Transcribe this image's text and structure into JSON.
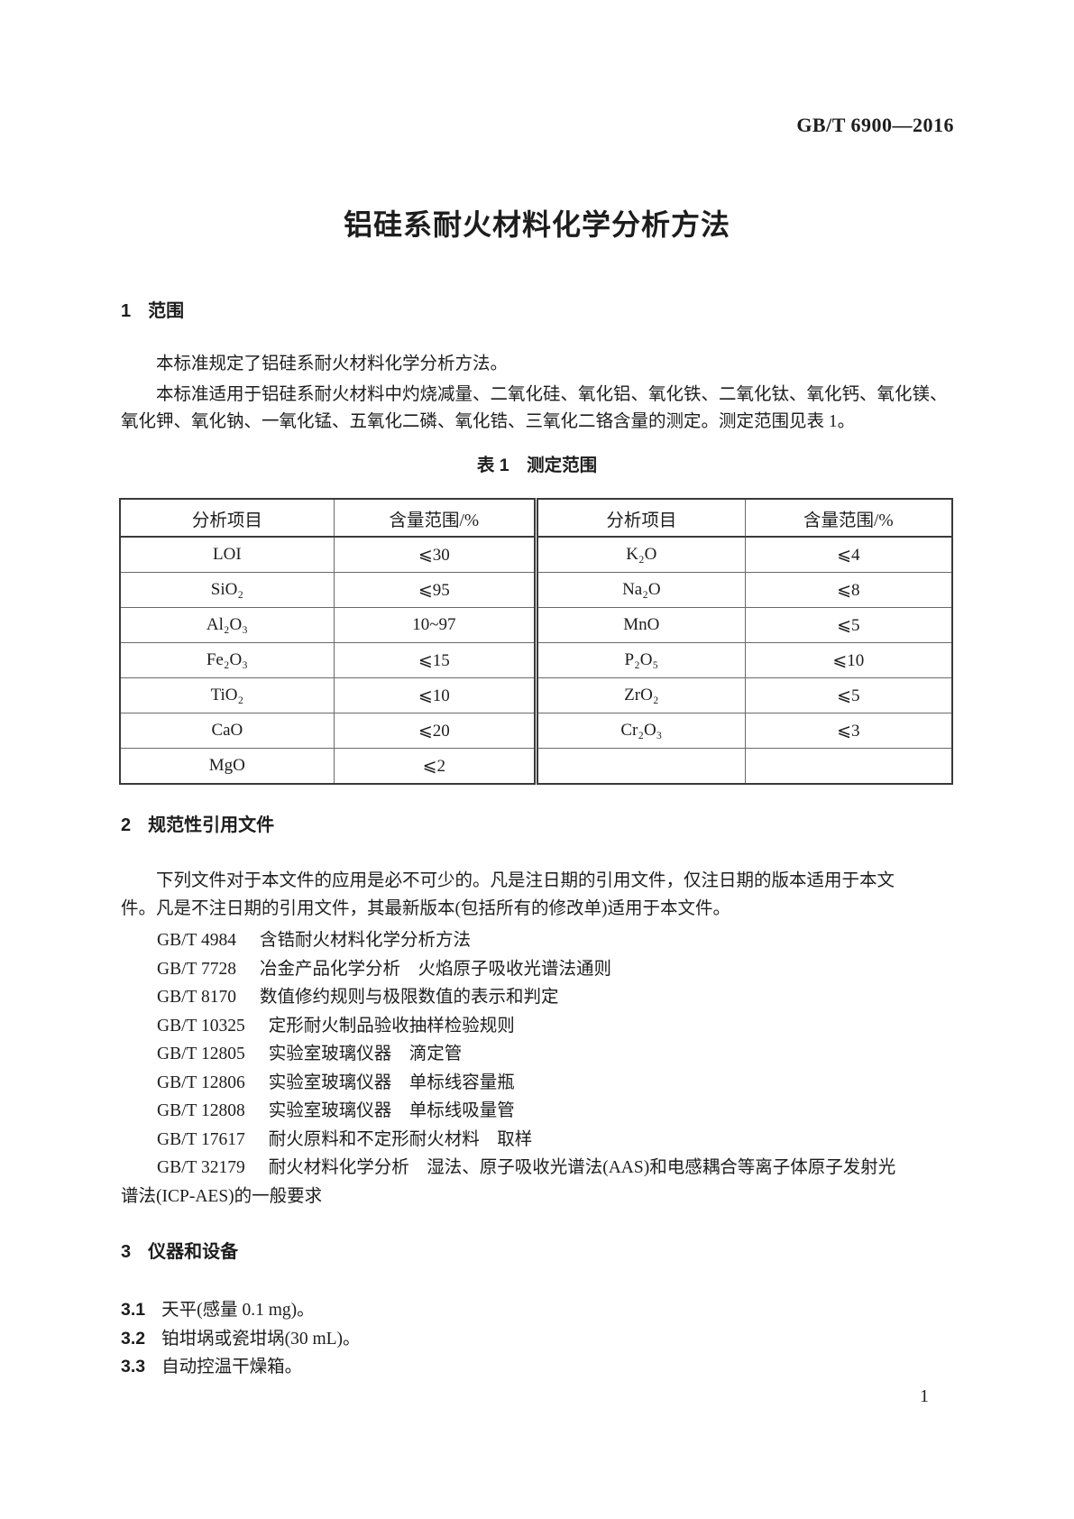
{
  "doc": {
    "standard_code": "GB/T 6900—2016",
    "title": "铝硅系耐火材料化学分析方法",
    "page_number": "1"
  },
  "section1": {
    "number": "1",
    "heading": "范围",
    "para1": "本标准规定了铝硅系耐火材料化学分析方法。",
    "para2_lines": [
      "本标准适用于铝硅系耐火材料中灼烧减量、二氧化硅、氧化铝、氧化铁、二氧化钛、氧化钙、氧化镁、",
      "氧化钾、氧化钠、一氧化锰、五氧化二磷、氧化锆、三氧化二铬含量的测定。测定范围见表 1。"
    ]
  },
  "table1": {
    "caption": "表 1　测定范围",
    "headers": [
      "分析项目",
      "含量范围/%",
      "分析项目",
      "含量范围/%"
    ],
    "rows": [
      [
        "LOI",
        "⩽30",
        "K₂O",
        "⩽4"
      ],
      [
        "SiO₂",
        "⩽95",
        "Na₂O",
        "⩽8"
      ],
      [
        "Al₂O₃",
        "10~97",
        "MnO",
        "⩽5"
      ],
      [
        "Fe₂O₃",
        "⩽15",
        "P₂O₅",
        "⩽10"
      ],
      [
        "TiO₂",
        "⩽10",
        "ZrO₂",
        "⩽5"
      ],
      [
        "CaO",
        "⩽20",
        "Cr₂O₃",
        "⩽3"
      ],
      [
        "MgO",
        "⩽2",
        "",
        ""
      ]
    ]
  },
  "section2": {
    "number": "2",
    "heading": "规范性引用文件",
    "intro_lines": [
      "下列文件对于本文件的应用是必不可少的。凡是注日期的引用文件，仅注日期的版本适用于本文",
      "件。凡是不注日期的引用文件，其最新版本(包括所有的修改单)适用于本文件。"
    ],
    "references": [
      {
        "code": "GB/T 4984",
        "title": "含锆耐火材料化学分析方法"
      },
      {
        "code": "GB/T 7728",
        "title": "冶金产品化学分析　火焰原子吸收光谱法通则"
      },
      {
        "code": "GB/T 8170",
        "title": "数值修约规则与极限数值的表示和判定"
      },
      {
        "code": "GB/T 10325",
        "title": "定形耐火制品验收抽样检验规则"
      },
      {
        "code": "GB/T 12805",
        "title": "实验室玻璃仪器　滴定管"
      },
      {
        "code": "GB/T 12806",
        "title": "实验室玻璃仪器　单标线容量瓶"
      },
      {
        "code": "GB/T 12808",
        "title": "实验室玻璃仪器　单标线吸量管"
      },
      {
        "code": "GB/T 17617",
        "title": "耐火原料和不定形耐火材料　取样"
      },
      {
        "code": "GB/T 32179",
        "title": "耐火材料化学分析　湿法、原子吸收光谱法(AAS)和电感耦合等离子体原子发射光",
        "title_cont": "谱法(ICP-AES)的一般要求"
      }
    ]
  },
  "section3": {
    "number": "3",
    "heading": "仪器和设备",
    "items": [
      {
        "number": "3.1",
        "text": "天平(感量 0.1 mg)。"
      },
      {
        "number": "3.2",
        "text": "铂坩埚或瓷坩埚(30 mL)。"
      },
      {
        "number": "3.3",
        "text": "自动控温干燥箱。"
      }
    ]
  }
}
